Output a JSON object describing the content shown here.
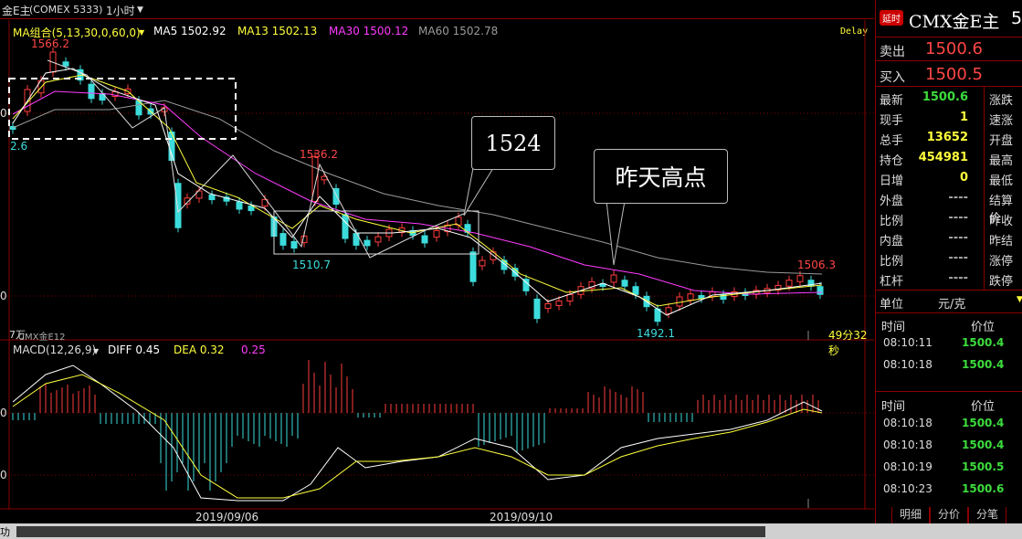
{
  "header": {
    "instrument": "金E主",
    "exchange_code": "(COMEX 5333)",
    "period": "1小时",
    "period_chevron": "chevron-down-icon",
    "delay": "Delay"
  },
  "ma_legend": {
    "title": "MA组合(5,13,30,0,60,0)",
    "ma5": "MA5 1502.92",
    "ma13": "MA13 1502.13",
    "ma30": "MA30 1500.12",
    "ma60": "MA60 1502.78",
    "colors": {
      "ma5": "#ffffff",
      "ma13": "#ffff3c",
      "ma30": "#ff3cff",
      "ma60": "#9a9a9a"
    }
  },
  "annotations": {
    "high_label": "1566.2",
    "left_label": "2.6",
    "mid_high_label": "1536.2",
    "mid_low_label": "1510.7",
    "low_label": "1492.1",
    "recent_high_label": "1506.3",
    "callout_1524": "1524",
    "callout_yesterday": "昨天高点",
    "lower_left": "7万",
    "lower_left_sub": "CMX金E12",
    "countdown": "49分32秒"
  },
  "price_axis": {
    "label_top": "0",
    "label_bottom": "0"
  },
  "macd": {
    "title": "MACD(12,26,9)",
    "diff": "DIFF 0.45",
    "dea": "DEA 0.32",
    "macd": "0.25",
    "axis_top": "0",
    "axis_bottom": "0"
  },
  "x_axis": {
    "label_1": "2019/09/06",
    "label_2": "2019/09/10"
  },
  "quote_panel": {
    "badge": "延时",
    "symbol": "CMX金E主",
    "symbol_suffix": "5",
    "sell_label": "卖出",
    "sell_price": "1500.6",
    "buy_label": "买入",
    "buy_price": "1500.5",
    "rows": [
      {
        "label": "最新",
        "value": "1500.6",
        "right": "涨跌",
        "color": "#3ddc3d"
      },
      {
        "label": "现手",
        "value": "1",
        "right": "速涨",
        "color": "#ffff3c"
      },
      {
        "label": "总手",
        "value": "13652",
        "right": "开盘",
        "color": "#ffff3c"
      },
      {
        "label": "持仓",
        "value": "454981",
        "right": "最高",
        "color": "#ffff3c"
      },
      {
        "label": "日增",
        "value": "0",
        "right": "最低",
        "color": "#ffff3c"
      },
      {
        "label": "外盘",
        "value": "----",
        "right": "结算价",
        "color": "#aaaaaa"
      },
      {
        "label": "比例",
        "value": "----",
        "right": "昨收",
        "color": "#aaaaaa"
      },
      {
        "label": "内盘",
        "value": "----",
        "right": "昨结",
        "color": "#aaaaaa"
      },
      {
        "label": "比例",
        "value": "----",
        "right": "涨停",
        "color": "#aaaaaa"
      },
      {
        "label": "杠杆",
        "value": "----",
        "right": "跌停",
        "color": "#aaaaaa"
      }
    ],
    "unit_label": "单位",
    "unit_value": "元/克",
    "ticks1_header_time": "时间",
    "ticks1_header_price": "价位",
    "ticks1": [
      {
        "time": "08:10:11",
        "price": "1500.4"
      },
      {
        "time": "08:10:18",
        "price": "1500.4"
      }
    ],
    "ticks2_header_time": "时间",
    "ticks2_header_price": "价位",
    "ticks2": [
      {
        "time": "08:10:18",
        "price": "1500.4"
      },
      {
        "time": "08:10:18",
        "price": "1500.4"
      },
      {
        "time": "08:10:19",
        "price": "1500.5"
      },
      {
        "time": "08:10:23",
        "price": "1500.6"
      }
    ],
    "tabs": [
      "明细",
      "分价",
      "分笔"
    ]
  },
  "statusbar": {
    "left_text": "功"
  }
}
